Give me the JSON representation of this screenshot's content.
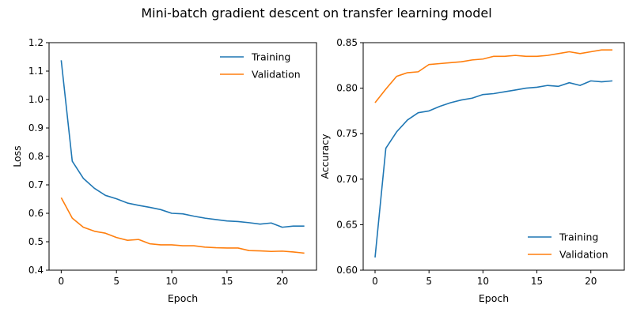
{
  "figure": {
    "title": "Mini-batch gradient descent on transfer learning model"
  },
  "chart_data": [
    {
      "type": "line",
      "xlabel": "Epoch",
      "ylabel": "Loss",
      "xlim": [
        -1.1,
        23.1
      ],
      "ylim": [
        0.4,
        1.2
      ],
      "xticks": [
        0,
        5,
        10,
        15,
        20
      ],
      "xtick_labels": [
        "0",
        "5",
        "10",
        "15",
        "20"
      ],
      "yticks": [
        0.4,
        0.5,
        0.6,
        0.7,
        0.8,
        0.9,
        1.0,
        1.1,
        1.2
      ],
      "ytick_labels": [
        "0.4",
        "0.5",
        "0.6",
        "0.7",
        "0.8",
        "0.9",
        "1.0",
        "1.1",
        "1.2"
      ],
      "grid": false,
      "legend_position": "top-right",
      "x": [
        0,
        1,
        2,
        3,
        4,
        5,
        6,
        7,
        8,
        9,
        10,
        11,
        12,
        13,
        14,
        15,
        16,
        17,
        18,
        19,
        20,
        21,
        22
      ],
      "series": [
        {
          "name": "Training",
          "color": "#1f77b4",
          "values": [
            1.138,
            0.783,
            0.723,
            0.688,
            0.663,
            0.651,
            0.636,
            0.628,
            0.621,
            0.613,
            0.6,
            0.598,
            0.59,
            0.583,
            0.578,
            0.573,
            0.571,
            0.567,
            0.562,
            0.566,
            0.551,
            0.555,
            0.555
          ]
        },
        {
          "name": "Validation",
          "color": "#ff7f0e",
          "values": [
            0.655,
            0.583,
            0.551,
            0.537,
            0.53,
            0.515,
            0.505,
            0.508,
            0.493,
            0.489,
            0.489,
            0.486,
            0.486,
            0.481,
            0.479,
            0.478,
            0.478,
            0.469,
            0.468,
            0.466,
            0.467,
            0.464,
            0.46
          ]
        }
      ]
    },
    {
      "type": "line",
      "xlabel": "Epoch",
      "ylabel": "Accuracy",
      "xlim": [
        -1.1,
        23.1
      ],
      "ylim": [
        0.6,
        0.85
      ],
      "xticks": [
        0,
        5,
        10,
        15,
        20
      ],
      "xtick_labels": [
        "0",
        "5",
        "10",
        "15",
        "20"
      ],
      "yticks": [
        0.6,
        0.65,
        0.7,
        0.75,
        0.8,
        0.85
      ],
      "ytick_labels": [
        "0.60",
        "0.65",
        "0.70",
        "0.75",
        "0.80",
        "0.85"
      ],
      "grid": false,
      "legend_position": "bottom-right",
      "x": [
        0,
        1,
        2,
        3,
        4,
        5,
        6,
        7,
        8,
        9,
        10,
        11,
        12,
        13,
        14,
        15,
        16,
        17,
        18,
        19,
        20,
        21,
        22
      ],
      "series": [
        {
          "name": "Training",
          "color": "#1f77b4",
          "values": [
            0.614,
            0.734,
            0.752,
            0.765,
            0.773,
            0.775,
            0.78,
            0.784,
            0.787,
            0.789,
            0.793,
            0.794,
            0.796,
            0.798,
            0.8,
            0.801,
            0.803,
            0.802,
            0.806,
            0.803,
            0.808,
            0.807,
            0.808
          ]
        },
        {
          "name": "Validation",
          "color": "#ff7f0e",
          "values": [
            0.784,
            0.799,
            0.813,
            0.817,
            0.818,
            0.826,
            0.827,
            0.828,
            0.829,
            0.831,
            0.832,
            0.835,
            0.835,
            0.836,
            0.835,
            0.835,
            0.836,
            0.838,
            0.84,
            0.838,
            0.84,
            0.842,
            0.842
          ]
        }
      ]
    }
  ]
}
